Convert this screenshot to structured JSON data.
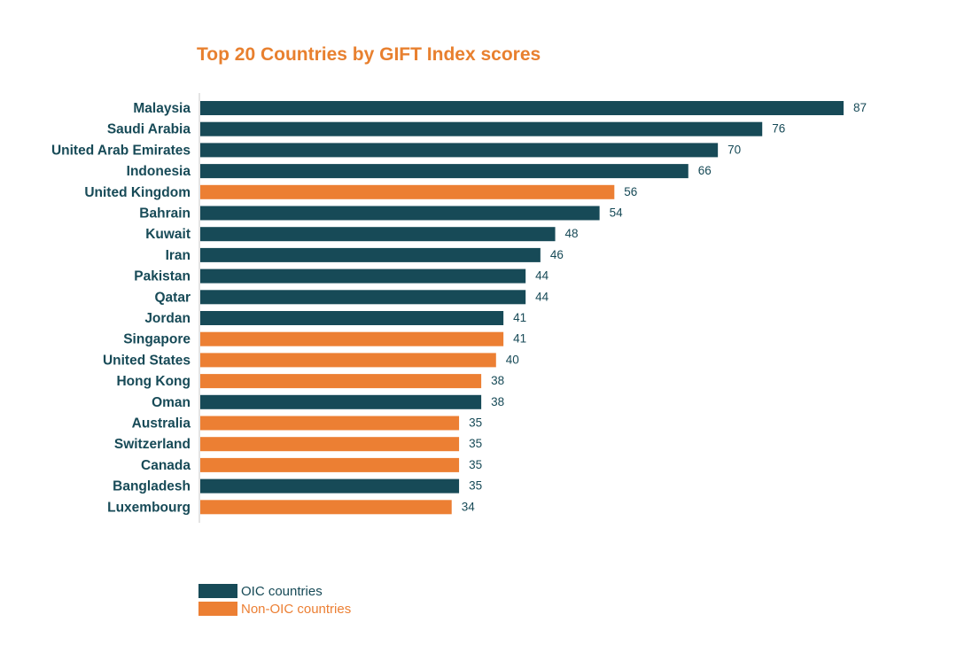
{
  "chart_data": {
    "type": "bar",
    "orientation": "horizontal",
    "title": "Top 20 Countries by GIFT Index scores",
    "xlim": [
      0,
      87
    ],
    "grid": false,
    "legend_position": "bottom-left",
    "categories": [
      "Malaysia",
      "Saudi Arabia",
      "United Arab Emirates",
      "Indonesia",
      "United Kingdom",
      "Bahrain",
      "Kuwait",
      "Iran",
      "Pakistan",
      "Qatar",
      "Jordan",
      "Singapore",
      "United States",
      "Hong Kong",
      "Oman",
      "Australia",
      "Switzerland",
      "Canada",
      "Bangladesh",
      "Luxembourg"
    ],
    "values": [
      87,
      76,
      70,
      66,
      56,
      54,
      48,
      46,
      44,
      44,
      41,
      41,
      40,
      38,
      38,
      35,
      35,
      35,
      35,
      34
    ],
    "group": [
      "OIC",
      "OIC",
      "OIC",
      "OIC",
      "Non-OIC",
      "OIC",
      "OIC",
      "OIC",
      "OIC",
      "OIC",
      "OIC",
      "Non-OIC",
      "Non-OIC",
      "Non-OIC",
      "OIC",
      "Non-OIC",
      "Non-OIC",
      "Non-OIC",
      "OIC",
      "Non-OIC"
    ],
    "legend": [
      {
        "key": "OIC",
        "label": "OIC countries",
        "color": "#174a57",
        "text_color": "#174a57"
      },
      {
        "key": "Non-OIC",
        "label": "Non-OIC countries",
        "color": "#ec7f33",
        "text_color": "#ec7f33"
      }
    ]
  }
}
